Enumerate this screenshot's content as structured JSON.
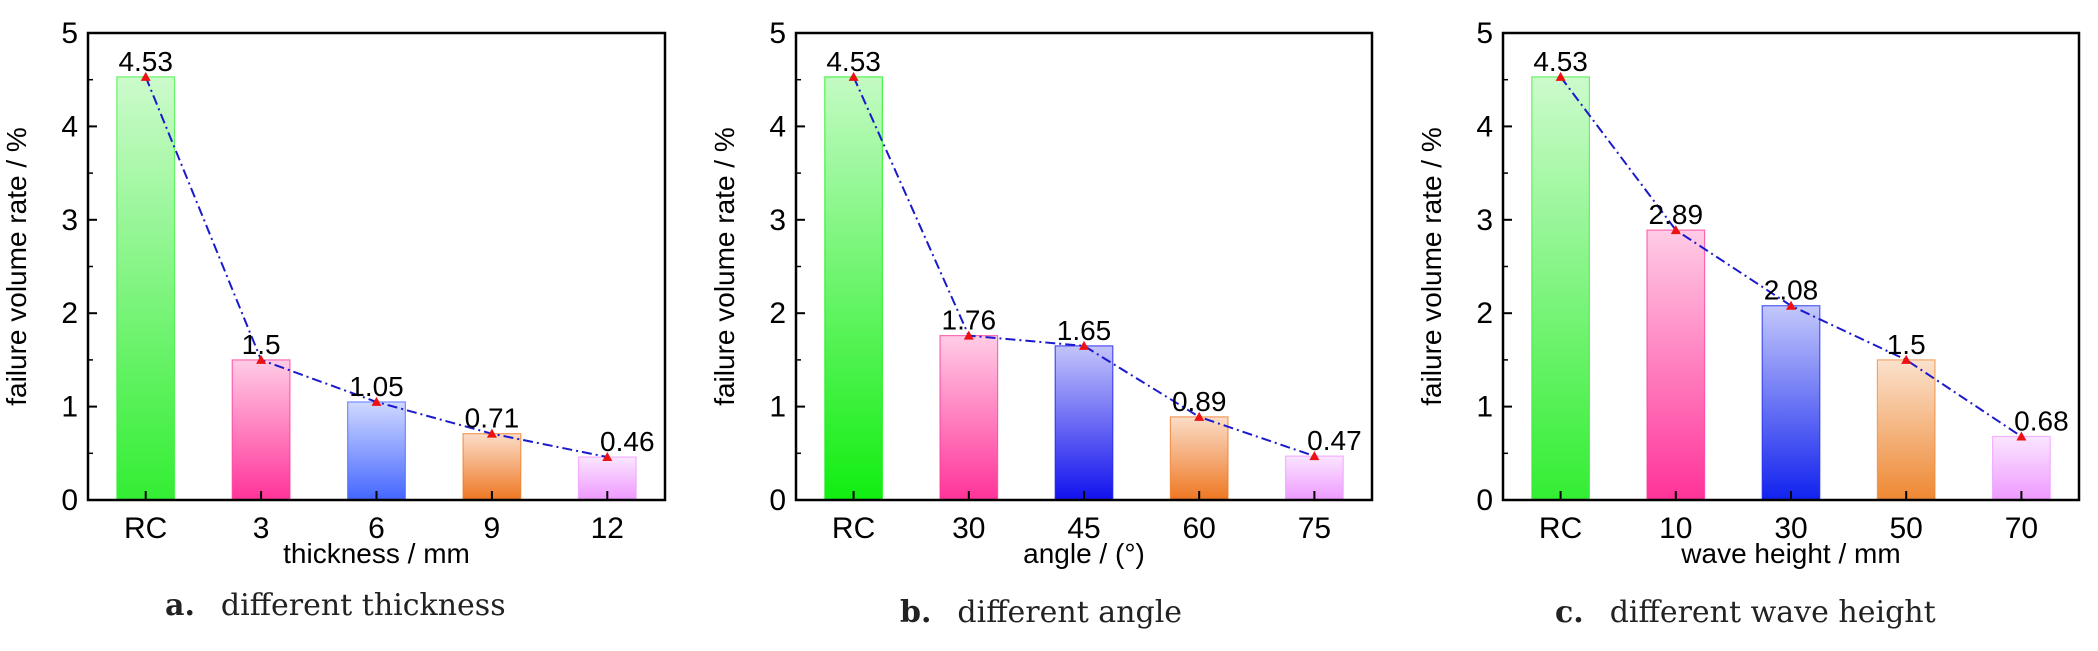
{
  "chart_data": [
    {
      "type": "bar",
      "categories": [
        "RC",
        "3",
        "6",
        "9",
        "12"
      ],
      "values": [
        4.53,
        1.5,
        1.05,
        0.71,
        0.46
      ],
      "value_labels": [
        "4.53",
        "1.5",
        "1.05",
        "0.71",
        "0.46"
      ],
      "xlabel": "thickness / mm",
      "ylabel": "failure volume rate / %",
      "ylim": [
        0,
        5
      ],
      "yticks": [
        "0",
        "1",
        "2",
        "3",
        "4",
        "5"
      ],
      "caption_letter": "a.",
      "caption_text": "different thickness",
      "trend_line": "dash-dot blue with red triangle markers",
      "bar_colors": [
        "#33ee33",
        "#ff3399",
        "#4466ff",
        "#ee7722",
        "#ee99ff"
      ]
    },
    {
      "type": "bar",
      "categories": [
        "RC",
        "30",
        "45",
        "60",
        "75"
      ],
      "values": [
        4.53,
        1.76,
        1.65,
        0.89,
        0.47
      ],
      "value_labels": [
        "4.53",
        "1.76",
        "1.65",
        "0.89",
        "0.47"
      ],
      "xlabel": "angle / (°)",
      "ylabel": "failure volume rate / %",
      "ylim": [
        0,
        5
      ],
      "yticks": [
        "0",
        "1",
        "2",
        "3",
        "4",
        "5"
      ],
      "caption_letter": "b.",
      "caption_text": "different angle",
      "trend_line": "dash-dot blue with red triangle markers",
      "bar_colors": [
        "#11ee11",
        "#ff3399",
        "#1111ee",
        "#ee7722",
        "#ee99ff"
      ]
    },
    {
      "type": "bar",
      "categories": [
        "RC",
        "10",
        "30",
        "50",
        "70"
      ],
      "values": [
        4.53,
        2.89,
        2.08,
        1.5,
        0.68
      ],
      "value_labels": [
        "4.53",
        "2.89",
        "2.08",
        "1.5",
        "0.68"
      ],
      "xlabel": "wave height / mm",
      "ylabel": "failure volume rate / %",
      "ylim": [
        0,
        5
      ],
      "yticks": [
        "0",
        "1",
        "2",
        "3",
        "4",
        "5"
      ],
      "caption_letter": "c.",
      "caption_text": "different wave height",
      "trend_line": "dash-dot blue with red triangle markers",
      "bar_colors": [
        "#33ee33",
        "#ff3399",
        "#1122ee",
        "#ee8833",
        "#ee99ff"
      ]
    }
  ],
  "colors": {
    "trend_line": "#1a1acc",
    "marker": "#ee1111",
    "axis": "#000000"
  }
}
